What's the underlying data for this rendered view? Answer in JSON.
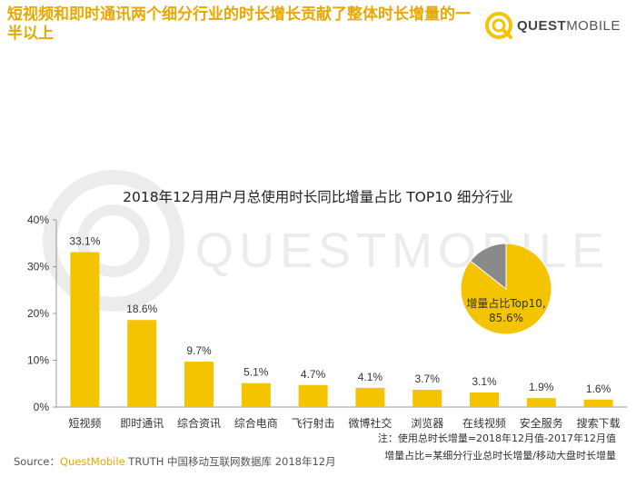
{
  "headline": "短视频和即时通讯两个细分行业的时长增长贡献了整体时长增量的一半以上",
  "logo": {
    "text_bold": "QUEST",
    "text_light": "MOBILE"
  },
  "watermark": "QUESTMOBILE",
  "colors": {
    "accent": "#F5C400",
    "headline": "#E7A800",
    "pie_other": "#8A8A8A"
  },
  "chart_data": {
    "type": "bar",
    "title": "2018年12月用户月总使用时长同比增量占比 TOP10 细分行业",
    "categories": [
      "短视频",
      "即时通讯",
      "综合资讯",
      "综合电商",
      "飞行射击",
      "微博社交",
      "浏览器",
      "在线视频",
      "安全服务",
      "搜索下载"
    ],
    "values": [
      33.1,
      18.6,
      9.7,
      5.1,
      4.7,
      4.1,
      3.7,
      3.1,
      1.9,
      1.6
    ],
    "data_labels": [
      "33.1%",
      "18.6%",
      "9.7%",
      "5.1%",
      "4.7%",
      "4.1%",
      "3.7%",
      "3.1%",
      "1.9%",
      "1.6%"
    ],
    "ylim": [
      0,
      40
    ],
    "yticks": [
      "0%",
      "10%",
      "20%",
      "30%",
      "40%"
    ],
    "ytick_values": [
      0,
      10,
      20,
      30,
      40
    ],
    "grid": false,
    "inset_pie": {
      "type": "pie",
      "label": "增量占比Top10,\n85.6%",
      "slices": [
        {
          "value": 85.6,
          "color": "#F5C400"
        },
        {
          "value": 14.4,
          "color": "#8A8A8A"
        }
      ]
    }
  },
  "footnotes": [
    "注：使用总时长增量=2018年12月值-2017年12月值",
    "增量占比=某细分行业总时长增量/移动大盘时长增量"
  ],
  "source": {
    "prefix": "Source：",
    "brand": "QuestMobile",
    "rest": " TRUTH 中国移动互联网数据库 2018年12月"
  }
}
